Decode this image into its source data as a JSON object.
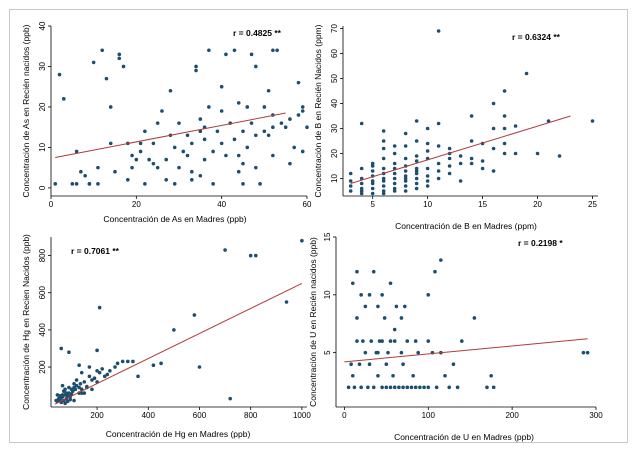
{
  "chart_data": [
    {
      "type": "scatter",
      "id": "as",
      "xlabel": "Concentración de As en Madres (ppb)",
      "ylabel": "Concentración de As en Recién nacidos (ppb)",
      "annotation": "r = 0.4825 **",
      "xlim": [
        0,
        60
      ],
      "ylim": [
        -2,
        40
      ],
      "xticks": [
        0,
        20,
        40,
        60
      ],
      "yticks": [
        0,
        10,
        20,
        30,
        40
      ],
      "fit": [
        [
          1,
          7.5
        ],
        [
          55,
          18.5
        ]
      ],
      "points": [
        [
          1,
          1
        ],
        [
          2,
          28
        ],
        [
          3,
          22
        ],
        [
          5,
          1
        ],
        [
          6,
          9
        ],
        [
          6,
          1
        ],
        [
          7,
          4
        ],
        [
          8,
          3
        ],
        [
          9,
          1
        ],
        [
          10,
          31
        ],
        [
          11,
          5
        ],
        [
          11,
          1
        ],
        [
          12,
          34
        ],
        [
          13,
          27
        ],
        [
          14,
          20
        ],
        [
          14,
          11
        ],
        [
          15,
          4
        ],
        [
          16,
          33
        ],
        [
          16,
          32
        ],
        [
          17,
          30
        ],
        [
          18,
          2
        ],
        [
          18,
          11
        ],
        [
          19,
          5
        ],
        [
          20,
          7
        ],
        [
          21,
          9
        ],
        [
          22,
          1
        ],
        [
          22,
          14
        ],
        [
          23,
          7
        ],
        [
          24,
          11
        ],
        [
          25,
          5
        ],
        [
          25,
          16
        ],
        [
          26,
          19
        ],
        [
          27,
          2
        ],
        [
          27,
          7
        ],
        [
          28,
          13
        ],
        [
          29,
          1
        ],
        [
          29,
          10
        ],
        [
          30,
          5
        ],
        [
          31,
          9
        ],
        [
          32,
          8
        ],
        [
          32,
          13
        ],
        [
          33,
          2
        ],
        [
          33,
          11
        ],
        [
          34,
          30
        ],
        [
          34,
          29
        ],
        [
          35,
          3
        ],
        [
          35,
          14
        ],
        [
          36,
          12
        ],
        [
          36,
          15
        ],
        [
          37,
          34
        ],
        [
          37,
          20
        ],
        [
          38,
          9
        ],
        [
          38,
          1
        ],
        [
          39,
          14
        ],
        [
          40,
          25
        ],
        [
          40,
          11
        ],
        [
          40,
          19
        ],
        [
          41,
          33
        ],
        [
          41,
          8
        ],
        [
          42,
          16
        ],
        [
          43,
          34
        ],
        [
          43,
          12
        ],
        [
          44,
          8
        ],
        [
          44,
          4
        ],
        [
          45,
          1
        ],
        [
          45,
          14
        ],
        [
          46,
          20
        ],
        [
          46,
          10
        ],
        [
          47,
          33
        ],
        [
          47,
          16
        ],
        [
          48,
          5
        ],
        [
          48,
          30
        ],
        [
          49,
          1
        ],
        [
          50,
          14
        ],
        [
          50,
          20
        ],
        [
          51,
          24
        ],
        [
          51,
          13
        ],
        [
          52,
          18
        ],
        [
          52,
          8
        ],
        [
          53,
          34
        ],
        [
          54,
          16
        ],
        [
          55,
          15
        ],
        [
          56,
          6
        ],
        [
          56,
          17
        ],
        [
          57,
          10
        ],
        [
          58,
          26
        ],
        [
          58,
          18
        ],
        [
          59,
          19
        ],
        [
          59,
          9
        ],
        [
          59,
          20
        ],
        [
          60,
          15
        ],
        [
          52,
          15
        ],
        [
          48,
          13
        ],
        [
          36,
          7
        ],
        [
          33,
          4
        ],
        [
          28,
          24
        ],
        [
          30,
          16
        ],
        [
          21,
          11
        ],
        [
          35,
          17
        ],
        [
          44,
          21
        ],
        [
          52,
          34
        ],
        [
          45,
          6
        ],
        [
          24,
          6
        ],
        [
          9,
          1
        ],
        [
          19,
          8
        ]
      ]
    },
    {
      "type": "scatter",
      "id": "b",
      "xlabel": "Concentración de B en Madres (ppm)",
      "ylabel": "Concentración de B en Recién Nacidos (ppm)",
      "annotation": "r = 0.6324 **",
      "xlim": [
        2.3,
        25.5
      ],
      "ylim": [
        3,
        71
      ],
      "xticks": [
        5,
        10,
        15,
        20,
        25
      ],
      "yticks": [
        10,
        20,
        30,
        40,
        50,
        60,
        70
      ],
      "fit": [
        [
          3,
          8
        ],
        [
          23,
          35
        ]
      ],
      "points": [
        [
          3,
          5
        ],
        [
          3,
          7
        ],
        [
          3,
          9
        ],
        [
          3,
          12
        ],
        [
          4,
          4
        ],
        [
          4,
          5
        ],
        [
          4,
          6
        ],
        [
          4,
          8
        ],
        [
          4,
          10
        ],
        [
          4,
          14
        ],
        [
          4,
          32
        ],
        [
          5,
          4
        ],
        [
          5,
          6
        ],
        [
          5,
          8
        ],
        [
          5,
          9
        ],
        [
          5,
          11
        ],
        [
          5,
          13
        ],
        [
          5,
          15
        ],
        [
          5,
          16
        ],
        [
          6,
          4
        ],
        [
          6,
          5
        ],
        [
          6,
          7
        ],
        [
          6,
          9
        ],
        [
          6,
          10
        ],
        [
          6,
          12
        ],
        [
          6,
          14
        ],
        [
          6,
          18
        ],
        [
          6,
          22
        ],
        [
          6,
          25
        ],
        [
          6,
          29
        ],
        [
          7,
          5
        ],
        [
          7,
          6
        ],
        [
          7,
          8
        ],
        [
          7,
          10
        ],
        [
          7,
          12
        ],
        [
          7,
          14
        ],
        [
          7,
          16
        ],
        [
          7,
          20
        ],
        [
          7,
          23
        ],
        [
          8,
          5
        ],
        [
          8,
          7
        ],
        [
          8,
          9
        ],
        [
          8,
          11
        ],
        [
          8,
          13
        ],
        [
          8,
          15
        ],
        [
          8,
          18
        ],
        [
          8,
          23
        ],
        [
          8,
          28
        ],
        [
          9,
          6
        ],
        [
          9,
          8
        ],
        [
          9,
          10
        ],
        [
          9,
          12
        ],
        [
          9,
          14
        ],
        [
          9,
          17
        ],
        [
          9,
          19
        ],
        [
          9,
          25
        ],
        [
          9,
          33
        ],
        [
          10,
          7
        ],
        [
          10,
          9
        ],
        [
          10,
          11
        ],
        [
          10,
          14
        ],
        [
          10,
          18
        ],
        [
          10,
          21
        ],
        [
          10,
          30
        ],
        [
          11,
          10
        ],
        [
          11,
          13
        ],
        [
          11,
          16
        ],
        [
          11,
          32
        ],
        [
          11,
          69
        ],
        [
          12,
          12
        ],
        [
          12,
          15
        ],
        [
          12,
          18
        ],
        [
          12,
          20
        ],
        [
          13,
          16
        ],
        [
          13,
          19
        ],
        [
          14,
          16
        ],
        [
          14,
          18
        ],
        [
          14,
          25
        ],
        [
          15,
          17
        ],
        [
          15,
          24
        ],
        [
          16,
          22
        ],
        [
          16,
          30
        ],
        [
          16,
          40
        ],
        [
          17,
          20
        ],
        [
          17,
          24
        ],
        [
          17,
          30
        ],
        [
          17,
          35
        ],
        [
          17,
          45
        ],
        [
          18,
          20
        ],
        [
          18,
          31
        ],
        [
          19,
          52
        ],
        [
          20,
          20
        ],
        [
          21,
          33
        ],
        [
          22,
          19
        ],
        [
          25,
          33
        ],
        [
          14,
          35
        ],
        [
          15,
          14
        ],
        [
          13,
          9
        ],
        [
          11,
          23
        ],
        [
          12,
          22
        ],
        [
          16,
          13
        ],
        [
          9,
          13
        ],
        [
          8,
          10
        ],
        [
          10,
          24
        ]
      ]
    },
    {
      "type": "scatter",
      "id": "hg",
      "xlabel": "Concentración de Hg en Madres (ppb)",
      "ylabel": "Concentración de Hg en Recien Nacidos (ppb)",
      "annotation": "r = 0.7061 **",
      "xlim": [
        20,
        1020
      ],
      "ylim": [
        -15,
        900
      ],
      "xticks": [
        200,
        400,
        600,
        800,
        1000
      ],
      "yticks": [
        200,
        400,
        600,
        800
      ],
      "fit": [
        [
          35,
          0
        ],
        [
          1000,
          650
        ]
      ],
      "points": [
        [
          40,
          20
        ],
        [
          45,
          15
        ],
        [
          50,
          30
        ],
        [
          55,
          25
        ],
        [
          60,
          35
        ],
        [
          60,
          10
        ],
        [
          65,
          40
        ],
        [
          70,
          20
        ],
        [
          75,
          50
        ],
        [
          75,
          5
        ],
        [
          80,
          30
        ],
        [
          85,
          45
        ],
        [
          90,
          60
        ],
        [
          95,
          40
        ],
        [
          100,
          55
        ],
        [
          105,
          70
        ],
        [
          110,
          90
        ],
        [
          115,
          80
        ],
        [
          120,
          100
        ],
        [
          130,
          60
        ],
        [
          135,
          110
        ],
        [
          140,
          80
        ],
        [
          150,
          120
        ],
        [
          160,
          95
        ],
        [
          170,
          150
        ],
        [
          180,
          130
        ],
        [
          190,
          140
        ],
        [
          200,
          120
        ],
        [
          210,
          170
        ],
        [
          220,
          190
        ],
        [
          230,
          150
        ],
        [
          240,
          160
        ],
        [
          250,
          180
        ],
        [
          270,
          200
        ],
        [
          280,
          220
        ],
        [
          300,
          230
        ],
        [
          320,
          230
        ],
        [
          340,
          230
        ],
        [
          60,
          300
        ],
        [
          90,
          280
        ],
        [
          210,
          520
        ],
        [
          450,
          220
        ],
        [
          580,
          480
        ],
        [
          600,
          200
        ],
        [
          700,
          830
        ],
        [
          800,
          800
        ],
        [
          820,
          800
        ],
        [
          940,
          550
        ],
        [
          1000,
          880
        ],
        [
          720,
          30
        ],
        [
          170,
          200
        ],
        [
          130,
          210
        ],
        [
          100,
          80
        ],
        [
          80,
          60
        ],
        [
          70,
          70
        ],
        [
          65,
          50
        ],
        [
          55,
          45
        ],
        [
          45,
          50
        ],
        [
          110,
          20
        ],
        [
          95,
          25
        ],
        [
          85,
          15
        ],
        [
          150,
          60
        ],
        [
          180,
          80
        ],
        [
          120,
          130
        ],
        [
          140,
          170
        ],
        [
          160,
          90
        ],
        [
          200,
          180
        ],
        [
          140,
          60
        ],
        [
          110,
          110
        ],
        [
          90,
          90
        ],
        [
          75,
          80
        ],
        [
          65,
          100
        ],
        [
          200,
          290
        ],
        [
          500,
          400
        ],
        [
          360,
          150
        ],
        [
          420,
          210
        ],
        [
          130,
          90
        ]
      ]
    },
    {
      "type": "scatter",
      "id": "u",
      "xlabel": "Concentración de U en Madres (ppb)",
      "ylabel": "Concentración de U en Recién nacidos (ppb)",
      "annotation": "r = 0.2198 *",
      "xlim": [
        -10,
        300
      ],
      "ylim": [
        0.3,
        15
      ],
      "xticks": [
        0,
        100,
        200,
        300
      ],
      "yticks": [
        5,
        10,
        15
      ],
      "fit": [
        [
          0,
          4.2
        ],
        [
          290,
          6.2
        ]
      ],
      "points": [
        [
          5,
          2
        ],
        [
          8,
          4
        ],
        [
          10,
          3
        ],
        [
          10,
          11
        ],
        [
          12,
          2
        ],
        [
          15,
          6
        ],
        [
          15,
          8
        ],
        [
          18,
          4
        ],
        [
          20,
          2
        ],
        [
          20,
          10
        ],
        [
          22,
          6
        ],
        [
          25,
          5
        ],
        [
          25,
          9
        ],
        [
          28,
          2
        ],
        [
          30,
          10
        ],
        [
          30,
          4
        ],
        [
          32,
          6
        ],
        [
          35,
          2
        ],
        [
          35,
          12
        ],
        [
          38,
          5
        ],
        [
          40,
          9
        ],
        [
          40,
          3
        ],
        [
          42,
          6
        ],
        [
          45,
          2
        ],
        [
          45,
          10
        ],
        [
          48,
          8
        ],
        [
          50,
          2
        ],
        [
          50,
          4
        ],
        [
          52,
          5
        ],
        [
          55,
          6
        ],
        [
          55,
          2
        ],
        [
          58,
          3
        ],
        [
          60,
          2
        ],
        [
          60,
          6
        ],
        [
          62,
          9
        ],
        [
          65,
          2
        ],
        [
          68,
          5
        ],
        [
          70,
          2
        ],
        [
          70,
          4
        ],
        [
          72,
          9
        ],
        [
          75,
          2
        ],
        [
          75,
          6
        ],
        [
          80,
          2
        ],
        [
          82,
          3
        ],
        [
          85,
          2
        ],
        [
          85,
          6
        ],
        [
          88,
          5
        ],
        [
          90,
          2
        ],
        [
          95,
          2
        ],
        [
          100,
          6
        ],
        [
          100,
          2
        ],
        [
          105,
          5
        ],
        [
          108,
          12
        ],
        [
          110,
          2
        ],
        [
          115,
          13
        ],
        [
          115,
          5
        ],
        [
          120,
          3
        ],
        [
          125,
          2
        ],
        [
          130,
          4
        ],
        [
          135,
          2
        ],
        [
          140,
          6
        ],
        [
          155,
          8
        ],
        [
          170,
          2
        ],
        [
          175,
          3
        ],
        [
          178,
          2
        ],
        [
          285,
          5
        ],
        [
          290,
          5
        ],
        [
          15,
          12
        ],
        [
          55,
          11
        ],
        [
          60,
          7
        ],
        [
          68,
          8
        ],
        [
          100,
          10
        ],
        [
          40,
          5
        ],
        [
          45,
          6
        ]
      ]
    }
  ]
}
